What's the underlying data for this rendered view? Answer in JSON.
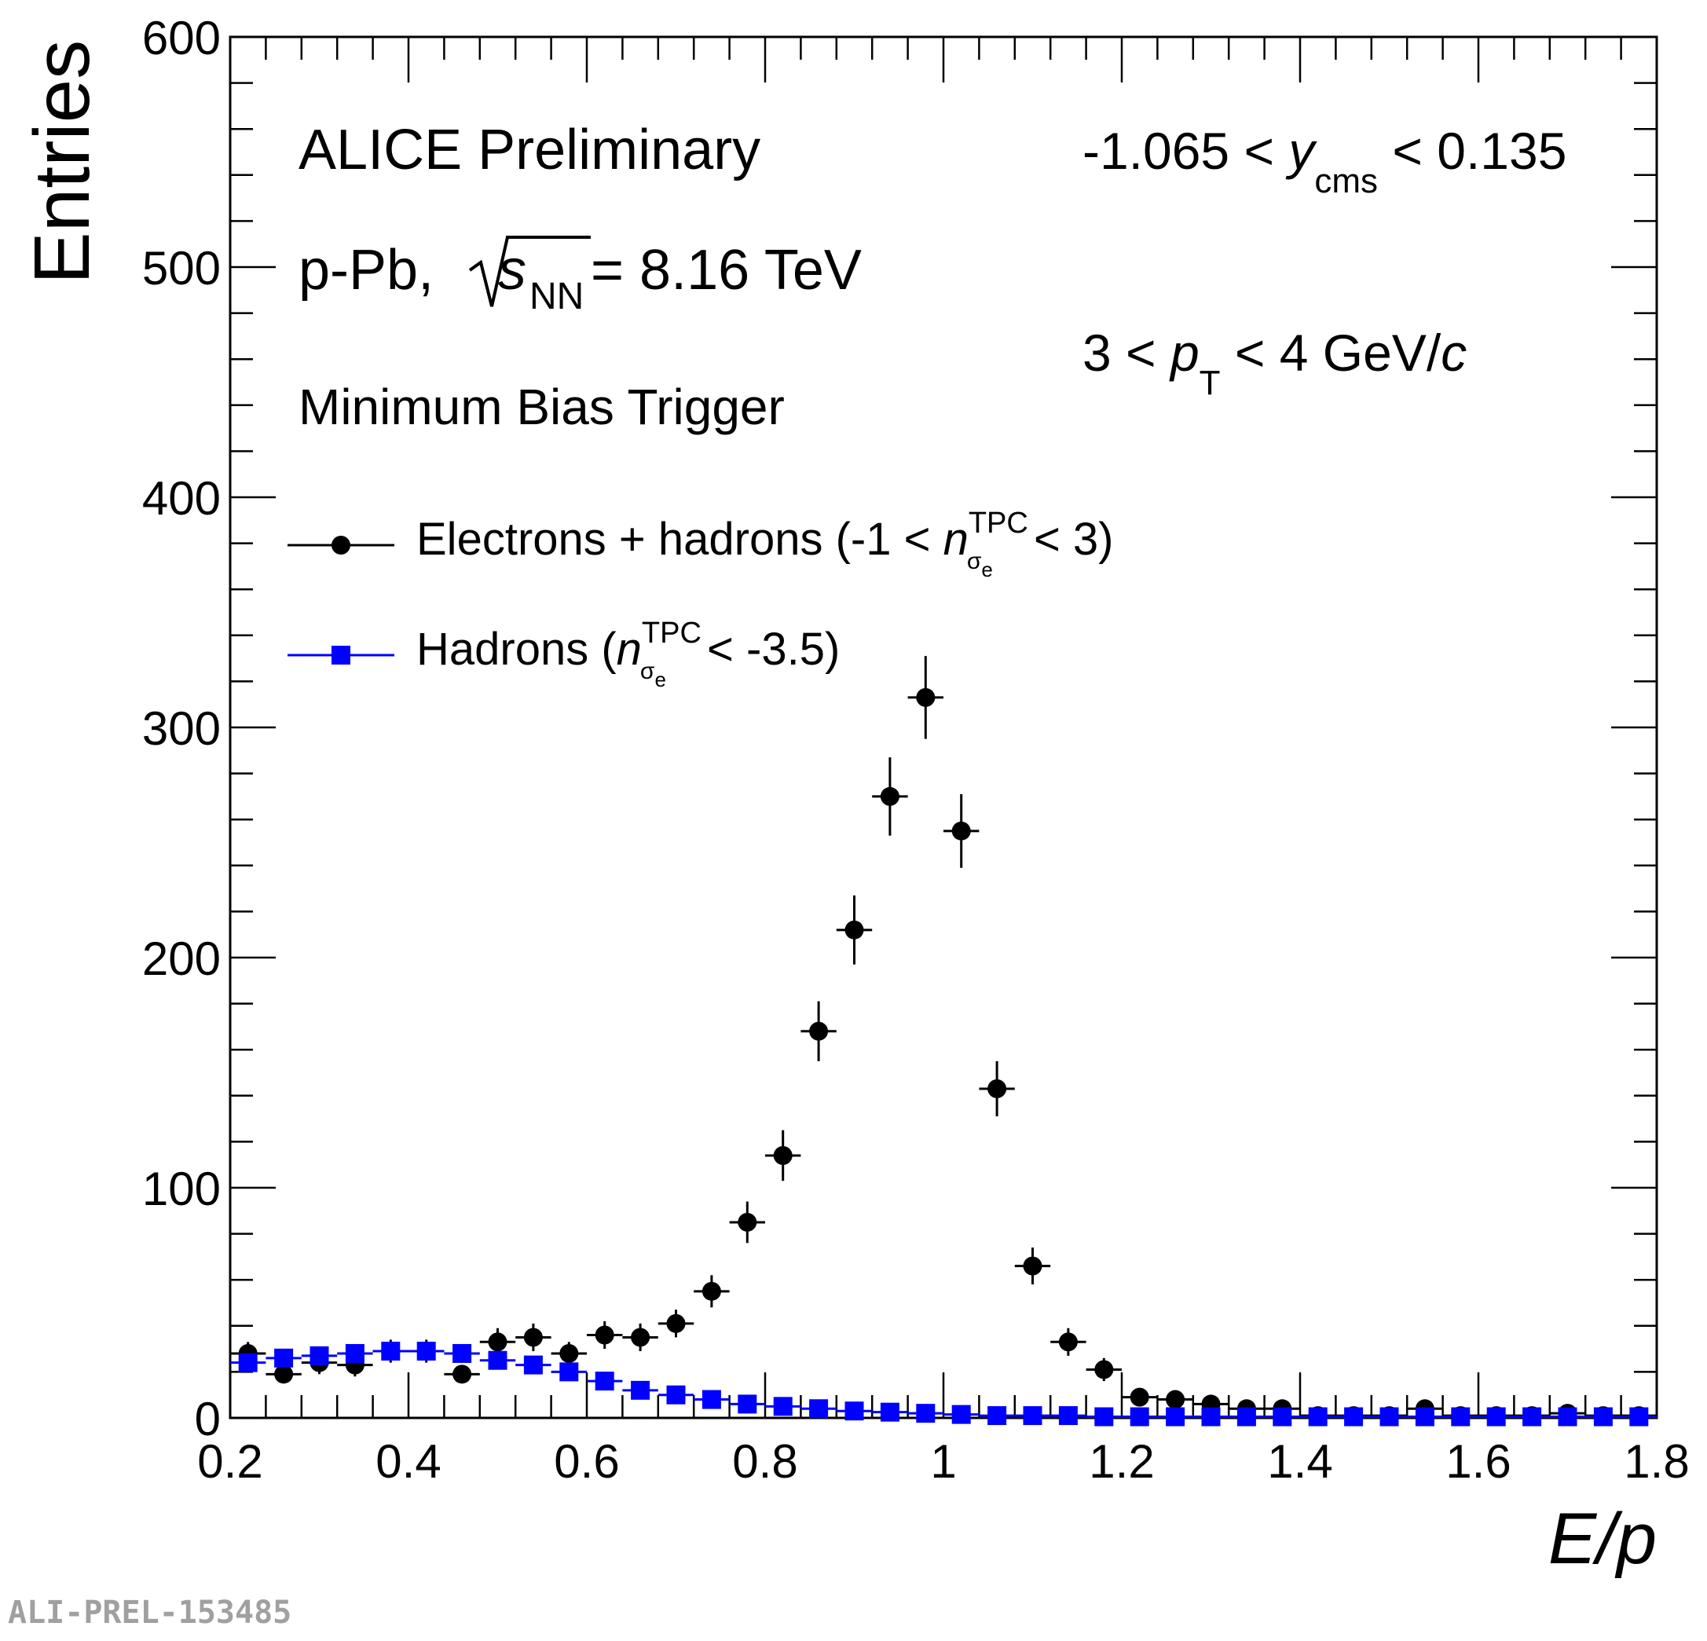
{
  "chart_data": {
    "type": "scatter",
    "xlabel": "E/p",
    "ylabel": "Entries",
    "xlim": [
      0.2,
      1.8
    ],
    "ylim": [
      0,
      600
    ],
    "x_ticks": [
      "0.2",
      "0.4",
      "0.6",
      "0.8",
      "1",
      "1.2",
      "1.4",
      "1.6",
      "1.8"
    ],
    "y_ticks": [
      "0",
      "100",
      "200",
      "300",
      "400",
      "500",
      "600"
    ],
    "annotations": {
      "experiment": "ALICE Preliminary",
      "system_prefix": "p-Pb, ",
      "sqrt_s_symbol": "s",
      "sqrt_s_sub": "NN",
      "energy": " = 8.16 TeV",
      "trigger": "Minimum Bias Trigger",
      "rapidity_low": "-1.065 < ",
      "rapidity_symbol": "y",
      "rapidity_sub": "cms",
      "rapidity_high": " < 0.135",
      "pt_low": "3 < ",
      "pt_symbol": "p",
      "pt_sub": "T",
      "pt_high": " < 4 GeV/",
      "pt_c": "c"
    },
    "legend": {
      "position": "upper-left",
      "entries": [
        {
          "label_prefix": "Electrons + hadrons (-1 < ",
          "n": "n",
          "sup": "TPC",
          "sub": "σ",
          "subsub": "e",
          "label_suffix": " < 3)"
        },
        {
          "label_prefix": "Hadrons (",
          "n": "n",
          "sup": "TPC",
          "sub": "σ",
          "subsub": "e",
          "label_suffix": " < -3.5)"
        }
      ]
    },
    "bin_half_width": 0.02,
    "series": [
      {
        "name": "Electrons + hadrons",
        "marker": "circle",
        "color": "#000000",
        "x": [
          0.22,
          0.26,
          0.3,
          0.34,
          0.38,
          0.42,
          0.46,
          0.5,
          0.54,
          0.58,
          0.62,
          0.66,
          0.7,
          0.74,
          0.78,
          0.82,
          0.86,
          0.9,
          0.94,
          0.98,
          1.02,
          1.06,
          1.1,
          1.14,
          1.18,
          1.22,
          1.26,
          1.3,
          1.34,
          1.38,
          1.42,
          1.46,
          1.5,
          1.54,
          1.58,
          1.62,
          1.66,
          1.7,
          1.74,
          1.78
        ],
        "y": [
          28,
          19,
          24,
          23,
          29,
          29,
          19,
          33,
          35,
          28,
          36,
          35,
          41,
          55,
          85,
          114,
          168,
          212,
          270,
          313,
          255,
          143,
          66,
          33,
          21,
          9,
          8,
          6,
          4,
          4,
          1,
          1,
          1,
          4,
          1,
          1,
          1,
          2,
          1,
          1
        ],
        "yerr": [
          5,
          4,
          5,
          5,
          5,
          5,
          4,
          6,
          6,
          5,
          6,
          6,
          6,
          7,
          9,
          11,
          13,
          15,
          17,
          18,
          16,
          12,
          8,
          6,
          5,
          3,
          3,
          2,
          2,
          2,
          1,
          1,
          1,
          2,
          1,
          1,
          1,
          1,
          1,
          1
        ]
      },
      {
        "name": "Hadrons",
        "marker": "square",
        "color": "#0000ff",
        "x": [
          0.22,
          0.26,
          0.3,
          0.34,
          0.38,
          0.42,
          0.46,
          0.5,
          0.54,
          0.58,
          0.62,
          0.66,
          0.7,
          0.74,
          0.78,
          0.82,
          0.86,
          0.9,
          0.94,
          0.98,
          1.02,
          1.06,
          1.1,
          1.14,
          1.18,
          1.22,
          1.26,
          1.3,
          1.34,
          1.38,
          1.42,
          1.46,
          1.5,
          1.54,
          1.58,
          1.62,
          1.66,
          1.7,
          1.74,
          1.78
        ],
        "y": [
          24,
          26,
          27,
          28,
          29,
          29,
          28,
          25,
          23,
          20,
          16,
          12,
          10,
          8,
          6,
          5,
          4,
          3,
          2.5,
          2,
          1.5,
          1,
          1,
          1,
          0.5,
          0.5,
          0.5,
          0.5,
          0.5,
          0.5,
          0.5,
          0.5,
          0.5,
          0.5,
          0.5,
          0.5,
          0.5,
          0.5,
          0.5,
          0.5
        ]
      }
    ]
  },
  "watermark": "ALI-PREL-153485"
}
